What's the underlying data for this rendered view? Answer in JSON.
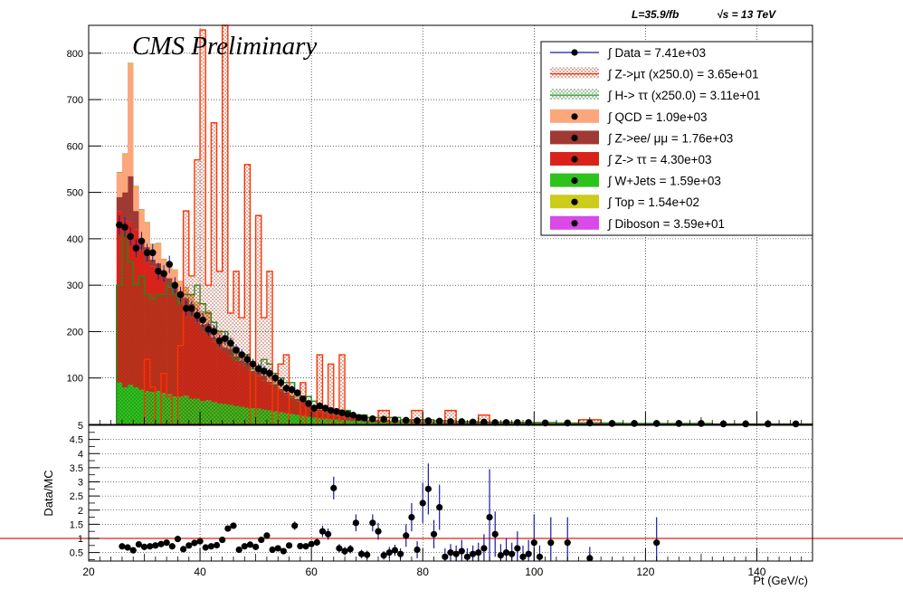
{
  "chart_data": [
    {
      "type": "bar",
      "stacked": true,
      "grid": true,
      "lumi_label": "L=35.9/fb",
      "energy_label": "√s = 13 TeV",
      "title": "CMS Preliminary",
      "ylim": [
        0,
        860
      ],
      "xlim": [
        20,
        150
      ],
      "y_ticks": [
        "100",
        "200",
        "300",
        "400",
        "500",
        "600",
        "700",
        "800"
      ],
      "legend_position": "top-right",
      "colors": {
        "qcd": "#fca67c",
        "zll": "#9e3a33",
        "ztt": "#d9231a",
        "wjets": "#2ec21c",
        "top": "#cccc1a",
        "diboson": "#d94ae6",
        "signal_zmt": "#ff3300",
        "signal_htt": "#1a8c1a",
        "data": "#000000"
      },
      "legend": [
        {
          "key": "data",
          "label": "∫ Data = 7.41e+03"
        },
        {
          "key": "signal_zmt",
          "label": "∫ Z->μτ (x250.0) = 3.65e+01"
        },
        {
          "key": "signal_htt",
          "label": "∫ H-> ττ (x250.0) = 3.11e+01"
        },
        {
          "key": "qcd",
          "label": "∫ QCD = 1.09e+03"
        },
        {
          "key": "zll",
          "label": "∫ Z->ee/ μμ = 1.76e+03"
        },
        {
          "key": "ztt",
          "label": "∫ Z-> ττ = 4.30e+03"
        },
        {
          "key": "wjets",
          "label": "∫ W+Jets = 1.59e+03"
        },
        {
          "key": "top",
          "label": "∫ Top = 1.54e+02"
        },
        {
          "key": "diboson",
          "label": "∫ Diboson = 3.59e+01"
        }
      ],
      "bin_edges": [
        25,
        26,
        27,
        28,
        29,
        30,
        31,
        32,
        33,
        34,
        35,
        36,
        37,
        38,
        39,
        40,
        41,
        42,
        43,
        44,
        45,
        46,
        47,
        48,
        49,
        50,
        51,
        52,
        53,
        54,
        55,
        56,
        57,
        58,
        59,
        60,
        61,
        62,
        63,
        64,
        65,
        66,
        67,
        68,
        69,
        70,
        72,
        74,
        76,
        78,
        80,
        82,
        84,
        86,
        88,
        90,
        92,
        94,
        96,
        98,
        100,
        104,
        108,
        112,
        116,
        120,
        124,
        128,
        132,
        136,
        140,
        144,
        150
      ],
      "series": [
        {
          "key": "wjets",
          "values": [
            90,
            80,
            85,
            80,
            75,
            72,
            70,
            72,
            68,
            65,
            60,
            60,
            62,
            55,
            55,
            50,
            52,
            48,
            45,
            44,
            42,
            40,
            38,
            36,
            35,
            34,
            32,
            30,
            28,
            26,
            24,
            22,
            20,
            18,
            16,
            14,
            13,
            12,
            11,
            10,
            9,
            8,
            7,
            7,
            6,
            5,
            5,
            4,
            4,
            3,
            3,
            3,
            2,
            2,
            2,
            2,
            2,
            2,
            2,
            2,
            2,
            1,
            1,
            1,
            1,
            1,
            1,
            1,
            1,
            1,
            1,
            1
          ]
        },
        {
          "key": "ztt",
          "values": [
            370,
            360,
            350,
            340,
            300,
            280,
            270,
            250,
            240,
            230,
            220,
            205,
            190,
            175,
            165,
            150,
            140,
            130,
            120,
            112,
            105,
            97,
            90,
            82,
            75,
            70,
            63,
            57,
            51,
            45,
            40,
            35,
            30,
            26,
            22,
            19,
            16,
            13,
            11,
            9,
            8,
            7,
            6,
            5,
            4,
            3,
            3,
            2,
            2,
            2,
            2,
            1,
            1,
            1,
            1,
            1,
            1,
            1,
            1,
            1,
            1,
            1,
            1,
            1,
            1,
            1,
            0,
            0,
            0,
            0,
            0,
            0
          ]
        },
        {
          "key": "zll",
          "values": [
            30,
            60,
            100,
            40,
            25,
            30,
            15,
            25,
            15,
            20,
            20,
            15,
            20,
            30,
            20,
            15,
            25,
            10,
            20,
            10,
            15,
            10,
            10,
            15,
            5,
            10,
            10,
            5,
            8,
            5,
            5,
            5,
            5,
            4,
            4,
            3,
            3,
            3,
            2,
            2,
            2,
            2,
            2,
            1,
            1,
            1,
            1,
            1,
            1,
            1,
            1,
            1,
            1,
            1,
            1,
            0,
            0,
            0,
            0,
            0,
            0,
            0,
            0,
            0,
            0,
            0,
            0,
            0,
            0,
            0,
            0,
            0
          ]
        },
        {
          "key": "qcd",
          "values": [
            50,
            80,
            240,
            50,
            60,
            50,
            30,
            40,
            30,
            30,
            30,
            25,
            20,
            15,
            20,
            25,
            25,
            20,
            15,
            15,
            20,
            15,
            15,
            15,
            10,
            10,
            10,
            8,
            8,
            7,
            6,
            6,
            5,
            5,
            4,
            4,
            3,
            3,
            3,
            3,
            2,
            2,
            2,
            2,
            1,
            1,
            1,
            1,
            1,
            1,
            1,
            1,
            1,
            1,
            0,
            0,
            0,
            0,
            0,
            0,
            0,
            0,
            0,
            0,
            0,
            0,
            0,
            0,
            0,
            0,
            0,
            0
          ]
        },
        {
          "key": "top",
          "values": [
            3,
            3,
            3,
            3,
            3,
            3,
            3,
            3,
            3,
            3,
            3,
            3,
            3,
            3,
            3,
            3,
            2,
            2,
            2,
            2,
            2,
            2,
            2,
            2,
            2,
            2,
            2,
            2,
            2,
            2,
            2,
            2,
            2,
            1,
            1,
            1,
            1,
            1,
            1,
            1,
            1,
            1,
            1,
            1,
            1,
            1,
            1,
            1,
            1,
            1,
            1,
            1,
            1,
            1,
            1,
            1,
            1,
            1,
            1,
            1,
            1,
            1,
            1,
            1,
            1,
            0,
            0,
            0,
            0,
            0,
            0,
            0
          ]
        },
        {
          "key": "diboson",
          "values": [
            1,
            1,
            1,
            1,
            1,
            1,
            1,
            1,
            1,
            1,
            1,
            1,
            1,
            1,
            1,
            1,
            1,
            1,
            1,
            1,
            1,
            1,
            1,
            1,
            1,
            1,
            1,
            1,
            1,
            1,
            1,
            1,
            1,
            1,
            1,
            1,
            0,
            0,
            0,
            0,
            0,
            0,
            0,
            0,
            0,
            0,
            0,
            0,
            0,
            0,
            0,
            0,
            0,
            0,
            0,
            0,
            0,
            0,
            0,
            0,
            0,
            0,
            0,
            0,
            0,
            0,
            0,
            0,
            0,
            0,
            0,
            0
          ]
        }
      ],
      "signal_zmt": [
        0,
        0,
        0,
        0,
        0,
        140,
        80,
        0,
        110,
        60,
        0,
        170,
        460,
        320,
        570,
        850,
        300,
        650,
        330,
        870,
        240,
        330,
        230,
        560,
        0,
        450,
        230,
        330,
        0,
        130,
        150,
        0,
        0,
        90,
        0,
        0,
        150,
        0,
        130,
        0,
        150,
        0,
        0,
        0,
        0,
        0,
        30,
        0,
        0,
        30,
        0,
        0,
        30,
        0,
        0,
        20,
        0,
        0,
        0,
        0,
        0,
        0,
        10,
        0,
        0,
        0,
        0,
        0,
        0,
        0,
        0,
        0
      ],
      "signal_htt": [
        300,
        410,
        350,
        300,
        320,
        280,
        270,
        280,
        280,
        300,
        280,
        260,
        280,
        280,
        300,
        260,
        240,
        220,
        200,
        200,
        170,
        140,
        150,
        150,
        120,
        120,
        140,
        130,
        110,
        100,
        90,
        90,
        70,
        60,
        60,
        50,
        40,
        40,
        30,
        30,
        30,
        30,
        20,
        20,
        20,
        15,
        15,
        15,
        10,
        10,
        10,
        8,
        8,
        6,
        6,
        5,
        5,
        5,
        4,
        4,
        4,
        3,
        3,
        3,
        2,
        2,
        2,
        2,
        1,
        1,
        1,
        1
      ],
      "data": {
        "x": [
          25.5,
          26.5,
          27.5,
          28.5,
          29.5,
          30.5,
          31.5,
          32.5,
          33.5,
          34.5,
          35.5,
          36.5,
          37.5,
          38.5,
          39.5,
          40.5,
          41.5,
          42.5,
          43.5,
          44.5,
          45.5,
          46.5,
          47.5,
          48.5,
          49.5,
          50.5,
          51.5,
          52.5,
          53.5,
          54.5,
          55.5,
          56.5,
          57.5,
          58.5,
          59.5,
          60.5,
          61.5,
          62.5,
          63.5,
          64.5,
          65.5,
          66.5,
          67.5,
          68.5,
          69.5,
          71,
          73,
          75,
          77,
          79,
          81,
          83,
          85,
          87,
          89,
          91,
          93,
          95,
          97,
          99,
          102,
          106,
          110,
          114,
          118,
          122,
          126,
          130,
          134,
          138,
          142,
          147
        ],
        "y": [
          430,
          425,
          405,
          380,
          395,
          370,
          370,
          330,
          325,
          345,
          300,
          280,
          250,
          250,
          235,
          225,
          205,
          200,
          180,
          185,
          175,
          160,
          150,
          140,
          130,
          120,
          115,
          110,
          100,
          90,
          78,
          75,
          68,
          55,
          45,
          35,
          40,
          35,
          30,
          28,
          25,
          22,
          20,
          15,
          14,
          12,
          11,
          10,
          9,
          8,
          8,
          7,
          6,
          6,
          5,
          5,
          4,
          4,
          4,
          4,
          3,
          3,
          3,
          2,
          2,
          2,
          2,
          2,
          1,
          1,
          1,
          1
        ]
      }
    },
    {
      "type": "scatter",
      "ylabel": "Data/MC",
      "xlabel": "Pt (GeV/c)",
      "xlim": [
        20,
        150
      ],
      "ylim": [
        0.2,
        5
      ],
      "y_ticks": [
        "0.5",
        "1",
        "1.5",
        "2",
        "2.5",
        "3",
        "3.5",
        "4",
        "4.5",
        "5"
      ],
      "x_ticks": [
        "20",
        "40",
        "60",
        "80",
        "100",
        "120",
        "140"
      ],
      "reference_line": 1,
      "points": {
        "x": [
          26,
          27,
          28,
          29,
          30,
          31,
          32,
          33,
          34,
          35,
          36,
          37,
          38,
          39,
          40,
          41,
          42,
          43,
          44,
          45,
          46,
          47,
          48,
          49,
          50,
          51,
          52,
          53,
          54,
          55,
          56,
          57,
          58,
          59,
          60,
          61,
          62,
          63,
          64,
          65,
          66,
          67,
          68,
          69,
          70,
          71,
          72,
          73,
          74,
          75,
          76,
          77,
          78,
          79,
          80,
          81,
          82,
          83,
          84,
          85,
          86,
          87,
          88,
          89,
          90,
          91,
          92,
          93,
          94,
          95,
          96,
          97,
          98,
          99,
          100,
          101,
          103,
          106,
          110,
          122
        ],
        "y": [
          0.72,
          0.68,
          0.58,
          0.79,
          0.7,
          0.72,
          0.75,
          0.8,
          0.85,
          0.72,
          0.98,
          0.62,
          0.75,
          0.84,
          0.9,
          0.68,
          0.72,
          0.76,
          0.95,
          1.35,
          1.45,
          0.6,
          0.72,
          0.78,
          0.7,
          0.95,
          1.1,
          0.6,
          0.65,
          0.55,
          0.75,
          1.45,
          0.73,
          0.72,
          0.8,
          0.86,
          1.25,
          1.15,
          2.78,
          0.65,
          0.55,
          0.62,
          1.55,
          0.45,
          0.42,
          1.55,
          1.25,
          0.4,
          0.5,
          0.58,
          0.45,
          1.1,
          1.75,
          0.6,
          2.25,
          2.75,
          1.15,
          2.1,
          0.35,
          0.5,
          0.45,
          0.55,
          0.35,
          0.45,
          0.5,
          0.65,
          1.75,
          1.15,
          0.4,
          0.5,
          0.45,
          0.65,
          0.35,
          0.45,
          0.85,
          0.35,
          0.85,
          0.85,
          0.3,
          0.85
        ],
        "err": [
          0.05,
          0.05,
          0.05,
          0.05,
          0.05,
          0.05,
          0.05,
          0.05,
          0.05,
          0.05,
          0.05,
          0.05,
          0.05,
          0.05,
          0.05,
          0.05,
          0.05,
          0.05,
          0.06,
          0.08,
          0.08,
          0.06,
          0.06,
          0.06,
          0.06,
          0.08,
          0.1,
          0.08,
          0.08,
          0.08,
          0.08,
          0.15,
          0.1,
          0.1,
          0.1,
          0.12,
          0.2,
          0.2,
          0.4,
          0.15,
          0.15,
          0.15,
          0.3,
          0.15,
          0.15,
          0.3,
          0.3,
          0.15,
          0.2,
          0.2,
          0.2,
          0.4,
          0.5,
          0.3,
          0.7,
          0.9,
          0.5,
          0.8,
          0.3,
          0.3,
          0.3,
          0.4,
          0.3,
          0.3,
          0.35,
          0.5,
          1.7,
          0.8,
          0.4,
          0.5,
          0.4,
          0.6,
          0.4,
          0.5,
          1.0,
          0.4,
          0.9,
          0.9,
          0.4,
          0.9
        ]
      }
    }
  ]
}
